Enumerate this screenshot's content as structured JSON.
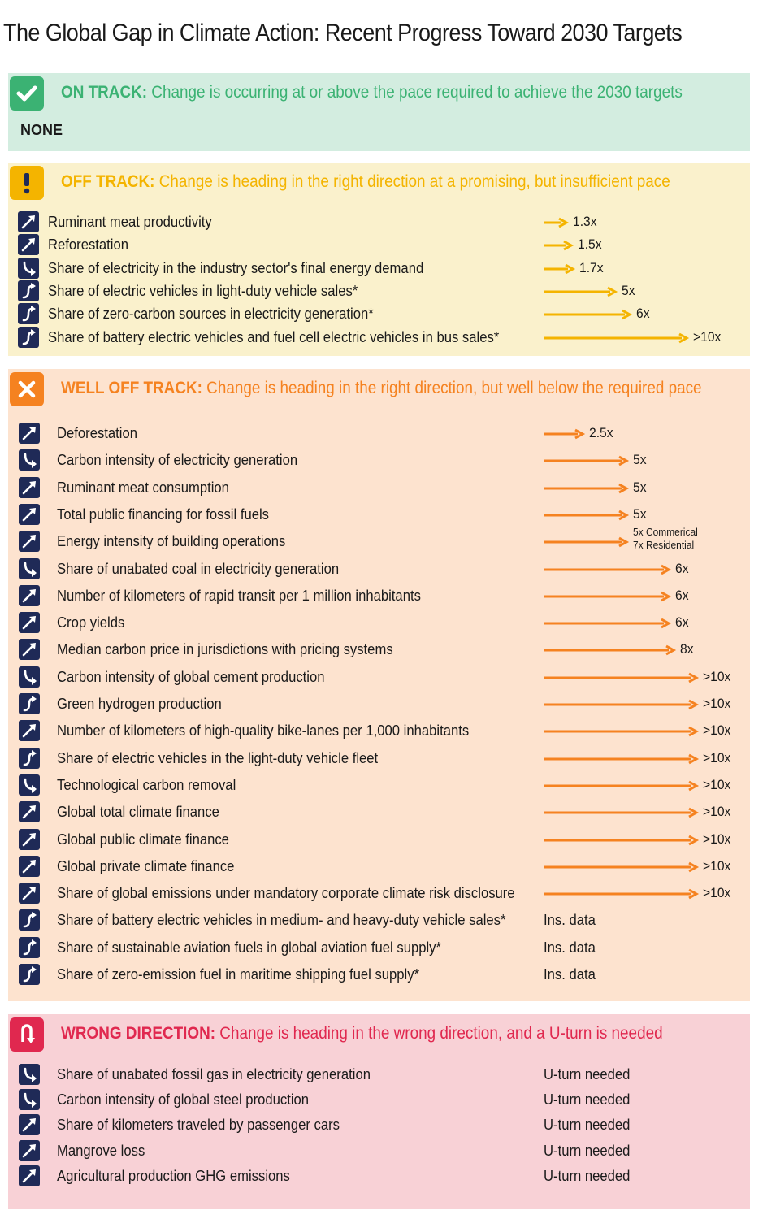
{
  "title": "The Global Gap in Climate Action: Recent Progress Toward 2030 Targets",
  "colors": {
    "on": "#3bb273",
    "off": "#f4b400",
    "well": "#f58220",
    "wrong": "#e0284f",
    "icon": "#1f2a57"
  },
  "on_track": {
    "label": "ON TRACK:",
    "description": "Change is occurring at or above the pace required to achieve the 2030 targets",
    "none": "NONE"
  },
  "off_track": {
    "label": "OFF TRACK:",
    "description": "Change is heading in the right direction at a promising, but insufficient pace",
    "items": [
      {
        "icon": "arrow-up-right-icon",
        "text": "Ruminant meat productivity",
        "multiplier": 1.3,
        "value": "1.3x"
      },
      {
        "icon": "arrow-up-right-icon",
        "text": "Reforestation",
        "multiplier": 1.5,
        "value": "1.5x"
      },
      {
        "icon": "curve-down-icon",
        "text": "Share of electricity in the industry sector's final energy demand",
        "multiplier": 1.7,
        "value": "1.7x"
      },
      {
        "icon": "s-curve-icon",
        "text": "Share of electric vehicles in light-duty vehicle sales*",
        "multiplier": 5,
        "value": "5x"
      },
      {
        "icon": "s-curve-icon",
        "text": "Share of zero-carbon sources in electricity generation*",
        "multiplier": 6,
        "value": "6x"
      },
      {
        "icon": "s-curve-icon",
        "text": "Share of battery electric vehicles and fuel cell electric vehicles in bus sales*",
        "multiplier": 10,
        "value": ">10x"
      }
    ]
  },
  "well_off_track": {
    "label": "WELL OFF TRACK:",
    "description": "Change is heading in the right direction, but well below the required pace",
    "items": [
      {
        "icon": "arrow-up-right-icon",
        "text": "Deforestation",
        "multiplier": 2.5,
        "value": "2.5x"
      },
      {
        "icon": "curve-down-icon",
        "text": "Carbon intensity of electricity generation",
        "multiplier": 5,
        "value": "5x"
      },
      {
        "icon": "arrow-up-right-icon",
        "text": "Ruminant meat consumption",
        "multiplier": 5,
        "value": "5x"
      },
      {
        "icon": "arrow-up-right-icon",
        "text": "Total public financing for fossil fuels",
        "multiplier": 5,
        "value": "5x"
      },
      {
        "icon": "arrow-up-right-icon",
        "text": "Energy intensity of building operations",
        "multiplier": 5,
        "value": "5x Commerical",
        "value2": "7x Residential"
      },
      {
        "icon": "curve-down-icon",
        "text": "Share of unabated coal in electricity generation",
        "multiplier": 6,
        "value": "6x"
      },
      {
        "icon": "arrow-up-right-icon",
        "text": "Number of kilometers of rapid transit per 1 million inhabitants",
        "multiplier": 6,
        "value": "6x"
      },
      {
        "icon": "arrow-up-right-icon",
        "text": "Crop yields",
        "multiplier": 6,
        "value": "6x"
      },
      {
        "icon": "arrow-up-right-icon",
        "text": "Median carbon price in jurisdictions with pricing systems",
        "multiplier": 8,
        "value": "8x"
      },
      {
        "icon": "curve-down-icon",
        "text": "Carbon intensity of global cement production",
        "multiplier": 10,
        "value": ">10x"
      },
      {
        "icon": "s-curve-icon",
        "text": "Green hydrogen production",
        "multiplier": 10,
        "value": ">10x"
      },
      {
        "icon": "arrow-up-right-icon",
        "text": "Number of kilometers of high-quality bike-lanes per 1,000 inhabitants",
        "multiplier": 10,
        "value": ">10x"
      },
      {
        "icon": "s-curve-icon",
        "text": "Share of electric vehicles in the light-duty vehicle fleet",
        "multiplier": 10,
        "value": ">10x"
      },
      {
        "icon": "curve-down-icon",
        "text": "Technological carbon removal",
        "multiplier": 10,
        "value": ">10x"
      },
      {
        "icon": "arrow-up-right-icon",
        "text": "Global total climate finance",
        "multiplier": 10,
        "value": ">10x"
      },
      {
        "icon": "arrow-up-right-icon",
        "text": "Global public climate finance",
        "multiplier": 10,
        "value": ">10x"
      },
      {
        "icon": "arrow-up-right-icon",
        "text": "Global private climate finance",
        "multiplier": 10,
        "value": ">10x"
      },
      {
        "icon": "arrow-up-right-icon",
        "text": "Share of global emissions under mandatory corporate climate risk disclosure",
        "multiplier": 10,
        "value": ">10x"
      },
      {
        "icon": "s-curve-icon",
        "text": "Share of battery electric vehicles in medium- and heavy-duty vehicle sales*",
        "multiplier": null,
        "value": "Ins. data"
      },
      {
        "icon": "s-curve-icon",
        "text": "Share of sustainable aviation fuels in global aviation fuel supply*",
        "multiplier": null,
        "value": "Ins. data"
      },
      {
        "icon": "s-curve-icon",
        "text": "Share of zero-emission fuel in maritime shipping fuel supply*",
        "multiplier": null,
        "value": "Ins. data"
      }
    ]
  },
  "wrong_direction": {
    "label": "WRONG DIRECTION:",
    "description": "Change is heading in the wrong direction, and a U-turn is needed",
    "items": [
      {
        "icon": "curve-down-icon",
        "text": "Share of unabated fossil gas in electricity generation",
        "value": "U-turn needed"
      },
      {
        "icon": "curve-down-icon",
        "text": "Carbon intensity of global steel production",
        "value": "U-turn needed"
      },
      {
        "icon": "arrow-up-right-icon",
        "text": "Share of kilometers traveled by passenger cars",
        "value": "U-turn needed"
      },
      {
        "icon": "arrow-up-right-icon",
        "text": "Mangrove loss",
        "value": "U-turn needed"
      },
      {
        "icon": "arrow-up-right-icon",
        "text": "Agricultural production GHG emissions",
        "value": "U-turn needed"
      }
    ]
  }
}
